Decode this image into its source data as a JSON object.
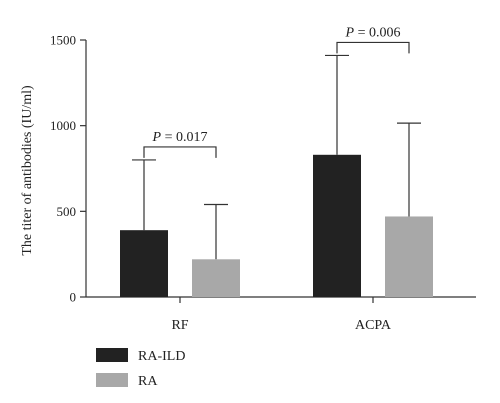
{
  "chart_data": {
    "type": "bar",
    "categories": [
      "RF",
      "ACPA"
    ],
    "series": [
      {
        "name": "RA-ILD",
        "values": [
          390,
          830
        ],
        "error_upper": [
          800,
          1410
        ],
        "color": "#222222"
      },
      {
        "name": "RA",
        "values": [
          220,
          470
        ],
        "error_upper": [
          540,
          1015
        ],
        "color": "#a8a8a8"
      }
    ],
    "ylabel": "The titer of antibodies (IU/ml)",
    "ylim": [
      0,
      1500
    ],
    "yticks": [
      "0",
      "500",
      "1000",
      "1500"
    ],
    "yticks_values": [
      0,
      500,
      1000,
      1500
    ],
    "grid": false,
    "legend_position": "bottom-left",
    "annotations": [
      {
        "category": "RF",
        "p_symbol": "P",
        "text": " = 0.017"
      },
      {
        "category": "ACPA",
        "p_symbol": "P",
        "text": " = 0.006"
      }
    ]
  }
}
